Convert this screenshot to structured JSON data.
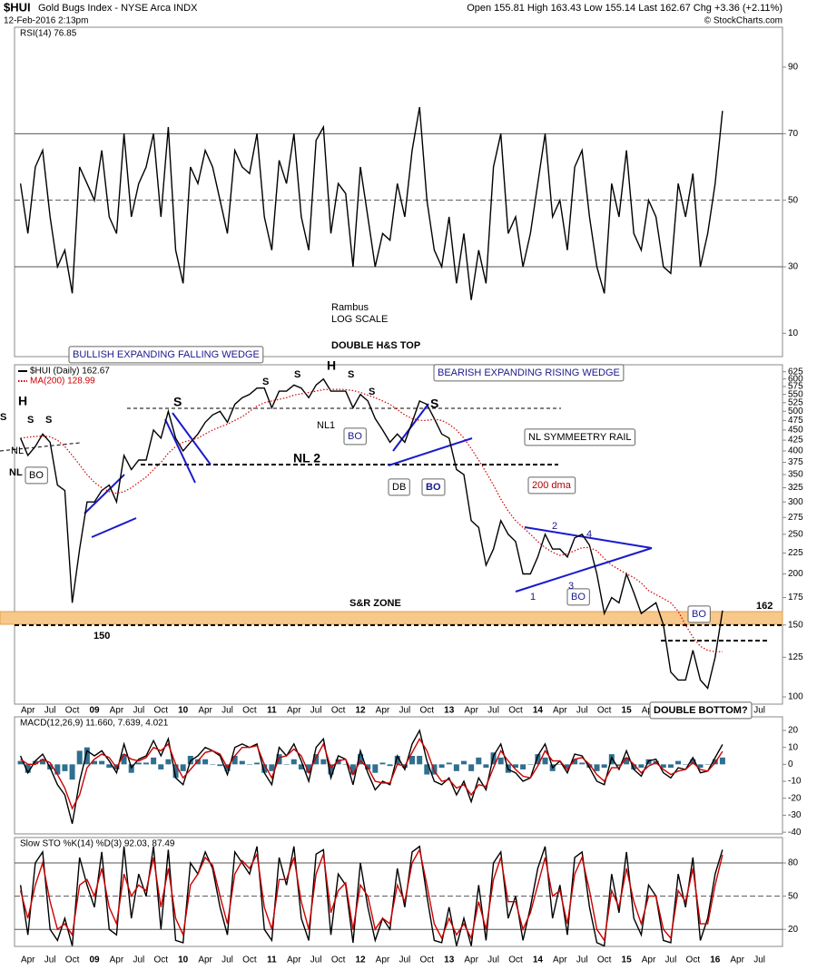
{
  "header": {
    "symbol": "$HUI",
    "name": "Gold Bugs Index - NYSE Arca INDX",
    "date": "12-Feb-2016 2:13pm",
    "quote": "Open 155.81  High 163.43  Low 155.14  Last 162.67  Chg +3.36 (+2.11%)",
    "copyright": "© StockCharts.com"
  },
  "chart_data": [
    {
      "type": "line",
      "legend_text": "RSI(14) 76.85",
      "ylim": [
        3,
        102
      ],
      "yticks": [
        10,
        30,
        50,
        70,
        90
      ],
      "levels": [
        70,
        50,
        30
      ],
      "series": [
        {
          "color": "#000000",
          "values": [
            55,
            40,
            60,
            65,
            45,
            30,
            35,
            22,
            60,
            55,
            50,
            65,
            45,
            40,
            70,
            45,
            55,
            60,
            70,
            45,
            72,
            35,
            25,
            60,
            55,
            65,
            60,
            50,
            40,
            65,
            60,
            58,
            70,
            45,
            35,
            62,
            55,
            70,
            45,
            35,
            68,
            72,
            40,
            55,
            52,
            30,
            60,
            45,
            30,
            40,
            38,
            55,
            45,
            65,
            78,
            50,
            35,
            30,
            45,
            25,
            40,
            20,
            35,
            25,
            60,
            70,
            40,
            45,
            30,
            40,
            55,
            70,
            45,
            50,
            35,
            60,
            65,
            45,
            30,
            22,
            55,
            45,
            65,
            40,
            35,
            50,
            45,
            30,
            28,
            55,
            45,
            58,
            30,
            40,
            55,
            76.85,
            null,
            null,
            null,
            null,
            null,
            null
          ]
        }
      ]
    },
    {
      "type": "line",
      "log_scale": true,
      "ylim": [
        96,
        650
      ],
      "yticks": [
        100,
        125,
        150,
        175,
        200,
        225,
        250,
        275,
        300,
        325,
        350,
        375,
        400,
        425,
        450,
        475,
        500,
        525,
        550,
        575,
        600,
        625
      ],
      "categories": [
        null,
        "Apr",
        null,
        null,
        "Jul",
        null,
        null,
        "Oct",
        null,
        null,
        "09",
        null,
        null,
        "Apr",
        null,
        null,
        "Jul",
        null,
        null,
        "Oct",
        null,
        null,
        "10",
        null,
        null,
        "Apr",
        null,
        null,
        "Jul",
        null,
        null,
        "Oct",
        null,
        null,
        "11",
        null,
        null,
        "Apr",
        null,
        null,
        "Jul",
        null,
        null,
        "Oct",
        null,
        null,
        "12",
        null,
        null,
        "Apr",
        null,
        null,
        "Jul",
        null,
        null,
        "Oct",
        null,
        null,
        "13",
        null,
        null,
        "Apr",
        null,
        null,
        "Jul",
        null,
        null,
        "Oct",
        null,
        null,
        "14",
        null,
        null,
        "Apr",
        null,
        null,
        "Jul",
        null,
        null,
        "Oct",
        null,
        null,
        "15",
        null,
        null,
        "Apr",
        null,
        null,
        "Jul",
        null,
        null,
        "Oct",
        null,
        null,
        "16",
        null,
        null,
        "Apr",
        null,
        null,
        "Jul",
        null
      ],
      "series": [
        {
          "name": "$HUI (Daily) 162.67",
          "color": "#000000",
          "values": [
            430,
            390,
            410,
            440,
            420,
            330,
            320,
            170,
            230,
            300,
            300,
            320,
            330,
            300,
            390,
            360,
            380,
            380,
            450,
            430,
            500,
            430,
            400,
            420,
            440,
            470,
            490,
            500,
            470,
            520,
            540,
            550,
            570,
            570,
            510,
            560,
            560,
            580,
            570,
            540,
            580,
            600,
            560,
            560,
            560,
            510,
            550,
            530,
            480,
            450,
            420,
            440,
            420,
            470,
            530,
            520,
            480,
            440,
            430,
            360,
            350,
            270,
            260,
            210,
            230,
            270,
            250,
            240,
            200,
            200,
            220,
            250,
            230,
            230,
            220,
            245,
            250,
            235,
            200,
            160,
            175,
            170,
            200,
            180,
            160,
            165,
            170,
            150,
            115,
            110,
            110,
            130,
            110,
            105,
            125,
            162.67,
            null,
            null,
            null,
            null,
            null,
            null
          ]
        },
        {
          "name": "MA(200) 128.99",
          "color": "#cc0000",
          "line_style": "dotted",
          "values": [
            430,
            432,
            434,
            435,
            433,
            425,
            410,
            390,
            370,
            350,
            335,
            325,
            318,
            315,
            318,
            325,
            335,
            345,
            360,
            375,
            395,
            410,
            420,
            425,
            430,
            440,
            450,
            458,
            465,
            475,
            485,
            500,
            515,
            525,
            530,
            535,
            540,
            548,
            552,
            556,
            560,
            565,
            566,
            566,
            565,
            562,
            556,
            548,
            540,
            530,
            520,
            505,
            490,
            480,
            475,
            475,
            478,
            475,
            465,
            450,
            430,
            405,
            380,
            355,
            330,
            305,
            285,
            270,
            260,
            250,
            240,
            232,
            226,
            222,
            224,
            228,
            232,
            232,
            228,
            218,
            210,
            205,
            200,
            196,
            190,
            182,
            178,
            174,
            170,
            162,
            150,
            140,
            133,
            130,
            129,
            128.99,
            null,
            null,
            null,
            null,
            null,
            null
          ]
        }
      ],
      "annotations": [
        "DOUBLE H&S TOP",
        "Rambus",
        "LOG SCALE",
        "BULLISH EXPANDING FALLING WEDGE",
        "BEARISH EXPANDING RISING WEDGE",
        "NL SYMMEETRY RAIL",
        "200 dma",
        "S&R ZONE",
        "150",
        "162",
        "DOUBLE BOTTOM?",
        "NL 2",
        "NL1",
        "NL",
        "NL",
        "BO",
        "BO",
        "DB",
        "BO",
        "BO",
        "BO",
        "H",
        "S",
        "S",
        "S",
        "S",
        "S",
        "S",
        "H",
        "S",
        "S",
        "S",
        "1",
        "2",
        "3",
        "4"
      ]
    },
    {
      "type": "line",
      "legend_text": "MACD(12,26,9) 11.660, 7.639, 4.021",
      "ylim": [
        -41,
        28
      ],
      "yticks": [
        20,
        10,
        0,
        -10,
        -20,
        -30,
        -40
      ],
      "series": [
        {
          "type": "bar",
          "color": "#2f6f8f",
          "values": [
            2,
            -5,
            2,
            3,
            -3,
            -6,
            -4,
            -9,
            8,
            10,
            2,
            2,
            -2,
            -3,
            6,
            -5,
            1,
            1,
            4,
            -3,
            3,
            -8,
            -4,
            5,
            3,
            3,
            0,
            -1,
            -4,
            5,
            2,
            0,
            1,
            -5,
            -4,
            6,
            0,
            3,
            -3,
            -5,
            6,
            3,
            -6,
            3,
            0,
            -6,
            6,
            -3,
            -5,
            1,
            -1,
            5,
            -2,
            5,
            5,
            -6,
            -6,
            -2,
            1,
            -4,
            2,
            -4,
            4,
            -2,
            7,
            4,
            -5,
            -2,
            -3,
            0,
            6,
            4,
            -4,
            0,
            -2,
            3,
            1,
            -2,
            -4,
            -2,
            6,
            -1,
            4,
            -3,
            -2,
            3,
            2,
            -2,
            -2,
            2,
            0,
            3,
            -2,
            0,
            3,
            4.021,
            null,
            null,
            null,
            null,
            null,
            null
          ]
        },
        {
          "color": "#000000",
          "values": [
            5,
            -5,
            2,
            6,
            -2,
            -12,
            -18,
            -35,
            -10,
            8,
            5,
            8,
            2,
            -5,
            12,
            -2,
            3,
            5,
            14,
            5,
            15,
            -8,
            -12,
            2,
            5,
            10,
            8,
            5,
            -6,
            10,
            12,
            10,
            12,
            -5,
            -12,
            10,
            5,
            12,
            2,
            -10,
            10,
            15,
            -8,
            5,
            3,
            -12,
            8,
            -5,
            -15,
            -10,
            -12,
            5,
            -3,
            12,
            20,
            2,
            -10,
            -12,
            -8,
            -18,
            -10,
            -22,
            -8,
            -15,
            5,
            12,
            -3,
            -5,
            -10,
            -8,
            5,
            12,
            -2,
            2,
            -5,
            6,
            5,
            -2,
            -10,
            -12,
            4,
            -3,
            8,
            -3,
            -7,
            2,
            3,
            -5,
            -8,
            -2,
            -3,
            4,
            -5,
            -4,
            4,
            11.66,
            null,
            null,
            null,
            null,
            null,
            null
          ]
        },
        {
          "color": "#cc0000",
          "values": [
            3,
            0,
            0,
            3,
            1,
            -6,
            -14,
            -26,
            -18,
            -2,
            3,
            6,
            4,
            -2,
            6,
            3,
            2,
            4,
            10,
            8,
            12,
            0,
            -8,
            -3,
            2,
            7,
            8,
            6,
            -2,
            5,
            10,
            10,
            11,
            0,
            -8,
            4,
            5,
            9,
            5,
            -5,
            4,
            12,
            -2,
            2,
            3,
            -6,
            2,
            -2,
            -10,
            -11,
            -11,
            0,
            -1,
            7,
            15,
            8,
            -4,
            -10,
            -9,
            -14,
            -12,
            -18,
            -12,
            -13,
            -2,
            8,
            2,
            -3,
            -7,
            -8,
            -1,
            8,
            2,
            2,
            -3,
            3,
            4,
            0,
            -6,
            -10,
            -2,
            -2,
            4,
            0,
            -5,
            -1,
            1,
            -3,
            -6,
            -4,
            -3,
            1,
            -3,
            -4,
            1,
            7.639,
            null,
            null,
            null,
            null,
            null,
            null
          ]
        }
      ]
    },
    {
      "type": "line",
      "legend_text": "Slow STO %K(14) %D(3) 92.03, 87.49",
      "ylim": [
        4.6,
        103
      ],
      "yticks": [
        20,
        50,
        80
      ],
      "levels": [
        80,
        50,
        20
      ],
      "categories": [
        null,
        "Apr",
        null,
        null,
        "Jul",
        null,
        null,
        "Oct",
        null,
        null,
        "09",
        null,
        null,
        "Apr",
        null,
        null,
        "Jul",
        null,
        null,
        "Oct",
        null,
        null,
        "10",
        null,
        null,
        "Apr",
        null,
        null,
        "Jul",
        null,
        null,
        "Oct",
        null,
        null,
        "11",
        null,
        null,
        "Apr",
        null,
        null,
        "Jul",
        null,
        null,
        "Oct",
        null,
        null,
        "12",
        null,
        null,
        "Apr",
        null,
        null,
        "Jul",
        null,
        null,
        "Oct",
        null,
        null,
        "13",
        null,
        null,
        "Apr",
        null,
        null,
        "Jul",
        null,
        null,
        "Oct",
        null,
        null,
        "14",
        null,
        null,
        "Apr",
        null,
        null,
        "Jul",
        null,
        null,
        "Oct",
        null,
        null,
        "15",
        null,
        null,
        "Apr",
        null,
        null,
        "Jul",
        null,
        null,
        "Oct",
        null,
        null,
        "16",
        null,
        null,
        "Apr",
        null,
        null,
        "Jul",
        null
      ],
      "series": [
        {
          "color": "#000000",
          "values": [
            60,
            15,
            80,
            90,
            20,
            10,
            30,
            5,
            85,
            60,
            40,
            90,
            20,
            15,
            95,
            30,
            70,
            50,
            95,
            20,
            92,
            10,
            8,
            80,
            70,
            90,
            75,
            40,
            15,
            90,
            80,
            70,
            95,
            20,
            10,
            85,
            60,
            95,
            30,
            10,
            88,
            92,
            15,
            70,
            60,
            8,
            80,
            40,
            10,
            30,
            20,
            75,
            40,
            90,
            95,
            50,
            10,
            8,
            40,
            5,
            30,
            5,
            60,
            10,
            80,
            90,
            30,
            50,
            10,
            40,
            75,
            95,
            30,
            60,
            15,
            85,
            90,
            40,
            8,
            5,
            70,
            35,
            90,
            30,
            15,
            60,
            50,
            10,
            8,
            70,
            40,
            85,
            10,
            30,
            70,
            92.03,
            null,
            null,
            null,
            null,
            null,
            null
          ]
        },
        {
          "color": "#cc0000",
          "values": [
            55,
            30,
            60,
            80,
            45,
            20,
            25,
            15,
            60,
            65,
            50,
            75,
            40,
            25,
            70,
            50,
            60,
            55,
            85,
            40,
            75,
            30,
            15,
            60,
            70,
            85,
            78,
            50,
            25,
            70,
            82,
            75,
            88,
            40,
            20,
            65,
            65,
            85,
            45,
            20,
            70,
            88,
            35,
            55,
            62,
            20,
            60,
            50,
            20,
            30,
            25,
            60,
            45,
            80,
            92,
            60,
            25,
            12,
            30,
            15,
            25,
            12,
            45,
            20,
            65,
            85,
            45,
            45,
            20,
            35,
            60,
            85,
            50,
            55,
            25,
            70,
            85,
            55,
            20,
            10,
            55,
            40,
            75,
            45,
            25,
            50,
            50,
            20,
            12,
            55,
            45,
            75,
            25,
            25,
            60,
            87.49,
            null,
            null,
            null,
            null,
            null,
            null
          ]
        }
      ]
    }
  ]
}
